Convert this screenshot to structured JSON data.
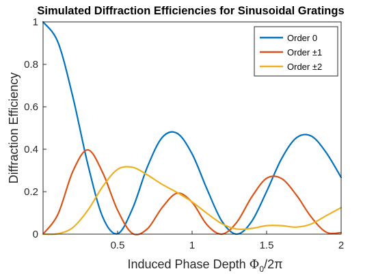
{
  "chart_data": {
    "type": "line",
    "title": "Simulated Diffraction Efficiencies for Sinusoidal Gratings",
    "xlabel": "Induced Phase Depth",
    "xlabel_math": {
      "symbol": "Φ",
      "subscript": "0",
      "suffix": "/2π"
    },
    "ylabel": "Diffraction Efficiency",
    "xlim": [
      0,
      2
    ],
    "ylim": [
      0,
      1
    ],
    "xticks": [
      {
        "value": 0.5,
        "label": "0.5"
      },
      {
        "value": 1,
        "label": "1"
      },
      {
        "value": 1.5,
        "label": "1.5"
      },
      {
        "value": 2,
        "label": "2"
      }
    ],
    "yticks": [
      {
        "value": 0,
        "label": "0"
      },
      {
        "value": 0.2,
        "label": "0.2"
      },
      {
        "value": 0.4,
        "label": "0.4"
      },
      {
        "value": 0.6,
        "label": "0.6"
      },
      {
        "value": 0.8,
        "label": "0.8"
      },
      {
        "value": 1,
        "label": "1"
      }
    ],
    "grid": false,
    "legend_position": "top-right",
    "x": [
      0,
      0.1,
      0.2,
      0.3,
      0.4,
      0.5,
      0.6,
      0.7,
      0.8,
      0.9,
      1.0,
      1.1,
      1.2,
      1.3,
      1.4,
      1.5,
      1.6,
      1.7,
      1.8,
      1.9,
      2.0
    ],
    "series": [
      {
        "name": "Order 0",
        "color": "#0072BD",
        "values": [
          1.0,
          0.904,
          0.646,
          0.33,
          0.081,
          0.002,
          0.12,
          0.317,
          0.456,
          0.475,
          0.378,
          0.212,
          0.061,
          0.0,
          0.06,
          0.201,
          0.355,
          0.454,
          0.462,
          0.384,
          0.267
        ]
      },
      {
        "name": "Order ±1",
        "color": "#D95319",
        "values": [
          0.0,
          0.094,
          0.296,
          0.397,
          0.29,
          0.113,
          0.003,
          0.025,
          0.126,
          0.193,
          0.15,
          0.044,
          0.0,
          0.056,
          0.175,
          0.263,
          0.262,
          0.184,
          0.08,
          0.009,
          0.007
        ]
      },
      {
        "name": "Order ±2",
        "color": "#EDB120",
        "values": [
          0.0,
          0.002,
          0.031,
          0.112,
          0.224,
          0.305,
          0.315,
          0.279,
          0.234,
          0.196,
          0.152,
          0.098,
          0.049,
          0.024,
          0.027,
          0.04,
          0.04,
          0.033,
          0.048,
          0.087,
          0.125
        ]
      }
    ]
  }
}
